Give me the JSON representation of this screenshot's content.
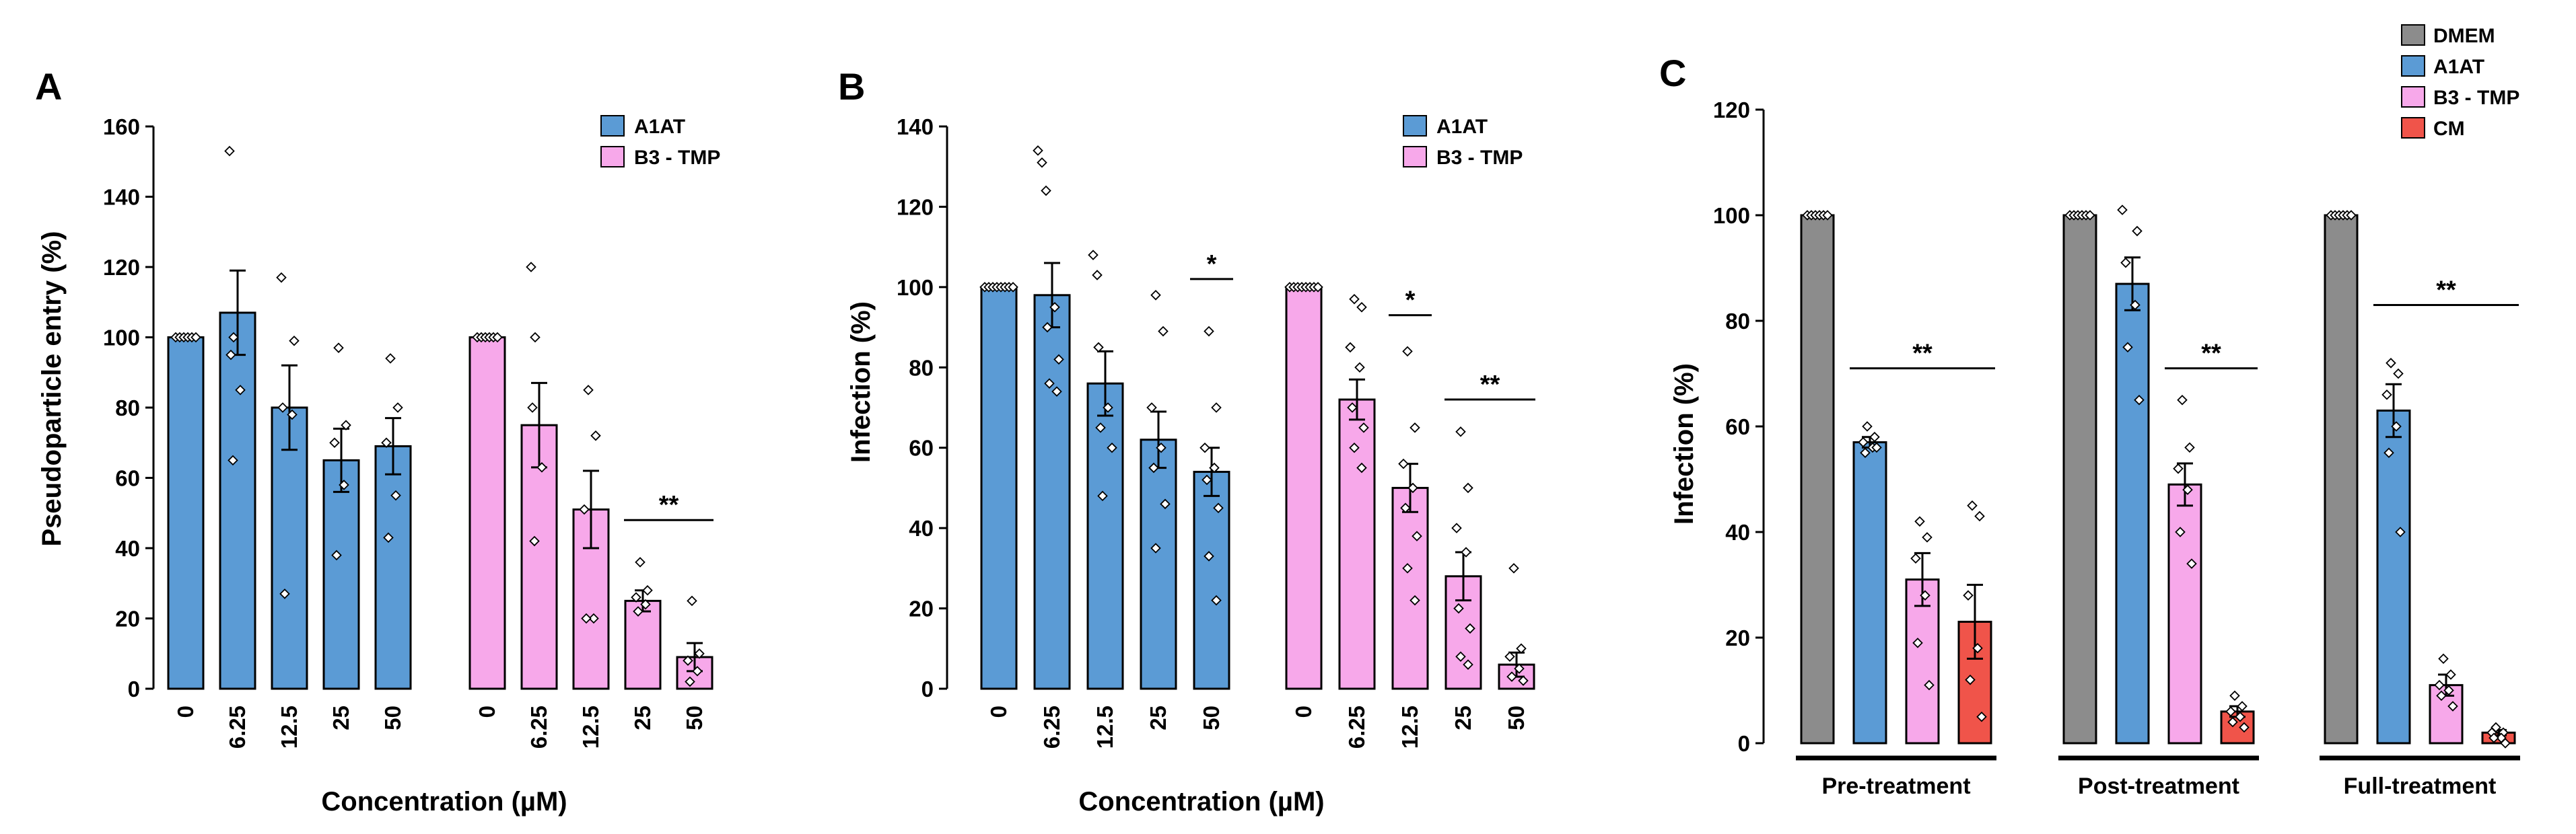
{
  "colors": {
    "A1AT": "#5b9bd5",
    "B3 - TMP": "#f7a8ea",
    "DMEM": "#8c8c8c",
    "CM": "#f0544a",
    "axis": "#000000"
  },
  "chart_data": [
    {
      "panel": "A",
      "type": "bar",
      "ylabel": "Pseudoparticle entry (%)",
      "xlabel": "Concentration (µM)",
      "ylim": [
        0,
        160
      ],
      "yticks": [
        0,
        20,
        40,
        60,
        80,
        100,
        120,
        140,
        160
      ],
      "legend": [
        "A1AT",
        "B3 - TMP"
      ],
      "groups": [
        {
          "series": "A1AT",
          "categories": [
            "0",
            "6.25",
            "12.5",
            "25",
            "50"
          ],
          "values": [
            100,
            107,
            80,
            65,
            69
          ],
          "errors": [
            0,
            12,
            12,
            9,
            8
          ],
          "points": [
            [
              100,
              100,
              100,
              100,
              100,
              100
            ],
            [
              153,
              100,
              95,
              85,
              65
            ],
            [
              117,
              99,
              80,
              78,
              27
            ],
            [
              97,
              75,
              70,
              58,
              38
            ],
            [
              94,
              80,
              70,
              55,
              43
            ]
          ]
        },
        {
          "series": "B3 - TMP",
          "categories": [
            "0",
            "6.25",
            "12.5",
            "25",
            "50"
          ],
          "values": [
            100,
            75,
            51,
            25,
            9
          ],
          "errors": [
            0,
            12,
            11,
            3,
            4
          ],
          "points": [
            [
              100,
              100,
              100,
              100,
              100,
              100
            ],
            [
              120,
              100,
              80,
              63,
              42
            ],
            [
              85,
              72,
              51,
              20,
              20
            ],
            [
              36,
              28,
              26,
              24,
              22
            ],
            [
              25,
              10,
              8,
              5,
              2
            ]
          ]
        }
      ],
      "significance": [
        {
          "group": 1,
          "from": 3,
          "to": 4,
          "y": 48,
          "label": "**"
        }
      ]
    },
    {
      "panel": "B",
      "type": "bar",
      "ylabel": "Infection (%)",
      "xlabel": "Concentration (µM)",
      "ylim": [
        0,
        140
      ],
      "yticks": [
        0,
        20,
        40,
        60,
        80,
        100,
        120,
        140
      ],
      "legend": [
        "A1AT",
        "B3 - TMP"
      ],
      "groups": [
        {
          "series": "A1AT",
          "categories": [
            "0",
            "6.25",
            "12.5",
            "25",
            "50"
          ],
          "values": [
            100,
            98,
            76,
            62,
            54
          ],
          "errors": [
            0,
            8,
            8,
            7,
            6
          ],
          "points": [
            [
              100,
              100,
              100,
              100,
              100,
              100,
              100,
              100
            ],
            [
              134,
              131,
              124,
              95,
              90,
              82,
              76,
              74
            ],
            [
              108,
              103,
              85,
              70,
              65,
              60,
              48
            ],
            [
              98,
              89,
              70,
              60,
              55,
              46,
              35
            ],
            [
              89,
              70,
              60,
              55,
              52,
              45,
              33,
              22
            ]
          ]
        },
        {
          "series": "B3 - TMP",
          "categories": [
            "0",
            "6.25",
            "12.5",
            "25",
            "50"
          ],
          "values": [
            100,
            72,
            50,
            28,
            6
          ],
          "errors": [
            0,
            5,
            6,
            6,
            3
          ],
          "points": [
            [
              100,
              100,
              100,
              100,
              100,
              100,
              100,
              100
            ],
            [
              97,
              95,
              85,
              80,
              70,
              65,
              60,
              55
            ],
            [
              84,
              65,
              56,
              50,
              45,
              38,
              30,
              22
            ],
            [
              64,
              50,
              40,
              34,
              20,
              15,
              8,
              6
            ],
            [
              30,
              10,
              8,
              5,
              3,
              2
            ]
          ]
        }
      ],
      "significance": [
        {
          "group": 0,
          "from": 4,
          "to": 4,
          "y": 102,
          "label": "*"
        },
        {
          "group": 1,
          "from": 2,
          "to": 2,
          "y": 93,
          "label": "*"
        },
        {
          "group": 1,
          "from": 3,
          "to": 4,
          "y": 72,
          "label": "**"
        }
      ]
    },
    {
      "panel": "C",
      "type": "bar",
      "ylabel": "Infection (%)",
      "xlabel": "",
      "ylim": [
        0,
        120
      ],
      "yticks": [
        0,
        20,
        40,
        60,
        80,
        100,
        120
      ],
      "legend": [
        "DMEM",
        "A1AT",
        "B3 - TMP",
        "CM"
      ],
      "categories": [
        "Pre-treatment",
        "Post-treatment",
        "Full-treatment"
      ],
      "series": [
        {
          "name": "DMEM",
          "values": [
            100,
            100,
            100
          ],
          "errors": [
            0,
            0,
            0
          ],
          "points": [
            [
              100,
              100,
              100,
              100,
              100,
              100
            ],
            [
              100,
              100,
              100,
              100,
              100,
              100
            ],
            [
              100,
              100,
              100,
              100,
              100,
              100
            ]
          ]
        },
        {
          "name": "A1AT",
          "values": [
            57,
            87,
            63
          ],
          "errors": [
            1,
            5,
            5
          ],
          "points": [
            [
              60,
              58,
              57,
              56,
              55,
              56
            ],
            [
              101,
              97,
              91,
              83,
              75,
              65
            ],
            [
              72,
              70,
              66,
              60,
              55,
              40
            ]
          ]
        },
        {
          "name": "B3 - TMP",
          "values": [
            31,
            49,
            11
          ],
          "errors": [
            5,
            4,
            2
          ],
          "points": [
            [
              42,
              39,
              35,
              28,
              19,
              11
            ],
            [
              65,
              56,
              52,
              48,
              40,
              34
            ],
            [
              16,
              13,
              11,
              10,
              9,
              7
            ]
          ]
        },
        {
          "name": "CM",
          "values": [
            23,
            6,
            2
          ],
          "errors": [
            7,
            1,
            0.5
          ],
          "points": [
            [
              45,
              43,
              28,
              18,
              12,
              5
            ],
            [
              9,
              7,
              6,
              5,
              4,
              3
            ],
            [
              3,
              2,
              2,
              1,
              1,
              0
            ]
          ]
        }
      ],
      "significance": [
        {
          "group": 0,
          "from": 1,
          "to": 3,
          "y": 71,
          "label": "**"
        },
        {
          "group": 1,
          "from": 2,
          "to": 3,
          "y": 71,
          "label": "**"
        },
        {
          "group": 2,
          "from": 1,
          "to": 3,
          "y": 83,
          "label": "**"
        }
      ]
    }
  ]
}
